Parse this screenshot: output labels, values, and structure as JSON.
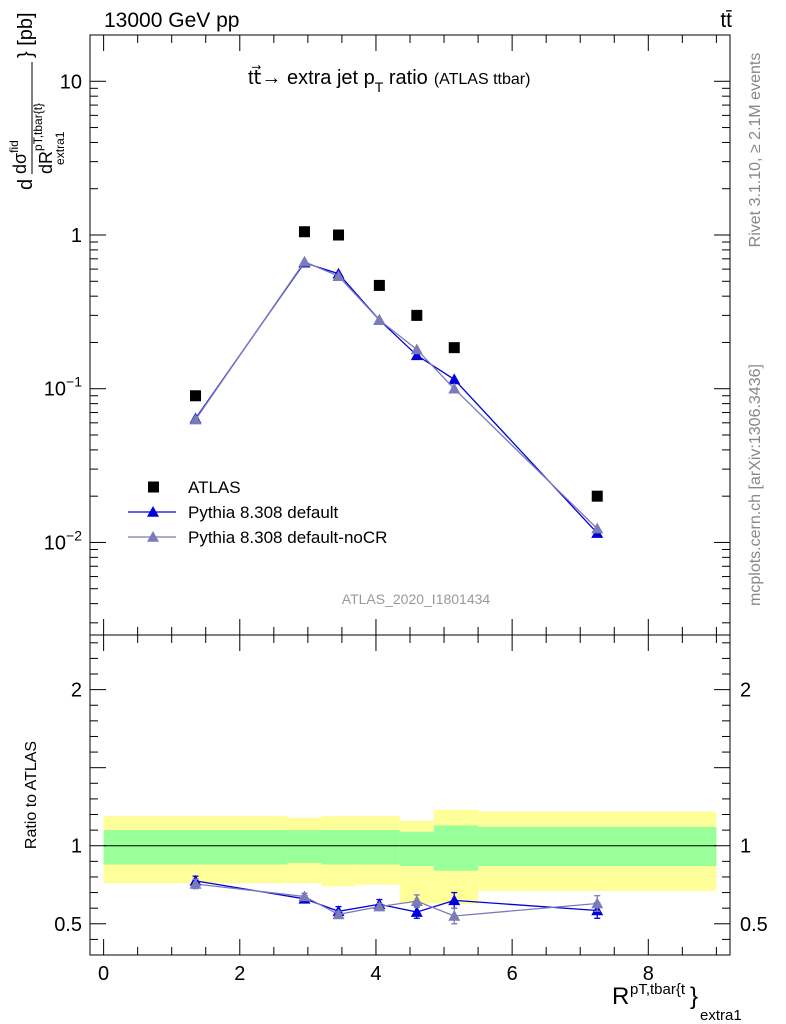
{
  "header": {
    "left": "13000 GeV pp",
    "right": "tt̄"
  },
  "side_labels": {
    "rivet": "Rivet 3.1.10, ≥ 2.1M events",
    "mcplots": "mcplots.cern.ch [arXiv:1306.3436]"
  },
  "watermark": "ATLAS_2020_I1801434",
  "chart_data": [
    {
      "type": "scatter",
      "title": "tt̄ → extra jet pT ratio",
      "title_parts": {
        "main": "tt⃗→ extra jet p",
        "sub": "T",
        "after": " ratio",
        "small": "(ATLAS ttbar)"
      },
      "ylabel": "d dσ^{fid} / dR^{pT,tbar{t}}_{extra1} [pb]",
      "ylabel_parts": {
        "d": "d",
        "num": "dσ",
        "num_sup": "fid",
        "den": "dR",
        "den_sup": "pT,tbar{t}",
        "den_sub": "extra1",
        "unit": "} [pb]"
      },
      "yscale": "log",
      "ylim": [
        0.0025,
        20
      ],
      "xlim": [
        -0.2,
        9.2
      ],
      "yticks": [
        {
          "value": 10,
          "label": "10"
        },
        {
          "value": 1,
          "label": "1"
        },
        {
          "value": 0.1,
          "label": "10",
          "sup": "−1"
        },
        {
          "value": 0.01,
          "label": "10",
          "sup": "−2"
        }
      ],
      "legend_position": "bottom-left",
      "series": [
        {
          "name": "ATLAS",
          "marker": "square",
          "color": "#000000",
          "x": [
            1.35,
            2.95,
            3.45,
            4.05,
            4.6,
            5.15,
            7.25
          ],
          "y": [
            0.09,
            1.05,
            1.0,
            0.47,
            0.3,
            0.185,
            0.02
          ]
        },
        {
          "name": "Pythia 8.308 default",
          "marker": "triangle",
          "color": "#0000dd",
          "x": [
            1.35,
            2.95,
            3.45,
            4.05,
            4.6,
            5.15,
            7.25
          ],
          "y": [
            0.064,
            0.66,
            0.56,
            0.28,
            0.165,
            0.115,
            0.0115
          ]
        },
        {
          "name": "Pythia 8.308 default-noCR",
          "marker": "triangle",
          "color": "#7b7bb8",
          "x": [
            1.35,
            2.95,
            3.45,
            4.05,
            4.6,
            5.15,
            7.25
          ],
          "y": [
            0.063,
            0.67,
            0.54,
            0.28,
            0.18,
            0.1,
            0.0123
          ]
        }
      ]
    },
    {
      "type": "scatter",
      "ylabel": "Ratio to ATLAS",
      "xlabel": "R^{pT,tbar{t}}_{extra1}",
      "xlabel_parts": {
        "main": "R",
        "sup": "pT,tbar{t",
        "brace": "}",
        "sub": "extra1"
      },
      "ylim": [
        0.3,
        2.35
      ],
      "xlim": [
        -0.2,
        9.2
      ],
      "xticks": [
        0,
        2,
        4,
        6,
        8
      ],
      "yticks": [
        {
          "value": 0.5,
          "label": "0.5"
        },
        {
          "value": 1,
          "label": "1"
        },
        {
          "value": 2,
          "label": "2"
        }
      ],
      "bands": [
        {
          "x0": 0,
          "x1": 2.7,
          "yellow": [
            0.76,
            1.19
          ],
          "green": [
            0.88,
            1.1
          ]
        },
        {
          "x0": 2.7,
          "x1": 3.2,
          "yellow": [
            0.76,
            1.18
          ],
          "green": [
            0.89,
            1.1
          ]
        },
        {
          "x0": 3.2,
          "x1": 3.7,
          "yellow": [
            0.74,
            1.19
          ],
          "green": [
            0.88,
            1.1
          ]
        },
        {
          "x0": 3.7,
          "x1": 4.35,
          "yellow": [
            0.75,
            1.19
          ],
          "green": [
            0.88,
            1.1
          ]
        },
        {
          "x0": 4.35,
          "x1": 4.85,
          "yellow": [
            0.63,
            1.16
          ],
          "green": [
            0.87,
            1.09
          ]
        },
        {
          "x0": 4.85,
          "x1": 5.5,
          "yellow": [
            0.63,
            1.23
          ],
          "green": [
            0.84,
            1.13
          ]
        },
        {
          "x0": 5.5,
          "x1": 9.0,
          "yellow": [
            0.71,
            1.22
          ],
          "green": [
            0.87,
            1.12
          ]
        }
      ],
      "series": [
        {
          "name": "Pythia 8.308 default",
          "color": "#0000dd",
          "x": [
            1.35,
            2.95,
            3.45,
            4.05,
            4.6,
            5.15,
            7.25
          ],
          "y": [
            0.775,
            0.66,
            0.58,
            0.625,
            0.575,
            0.65,
            0.585
          ],
          "err": [
            0.03,
            0.02,
            0.03,
            0.03,
            0.04,
            0.05,
            0.05
          ]
        },
        {
          "name": "Pythia 8.308 default-noCR",
          "color": "#7b7bb8",
          "x": [
            1.35,
            2.95,
            3.45,
            4.05,
            4.6,
            5.15,
            7.25
          ],
          "y": [
            0.755,
            0.675,
            0.56,
            0.61,
            0.645,
            0.55,
            0.63
          ],
          "err": [
            0.03,
            0.02,
            0.02,
            0.02,
            0.04,
            0.05,
            0.05
          ]
        }
      ]
    }
  ]
}
